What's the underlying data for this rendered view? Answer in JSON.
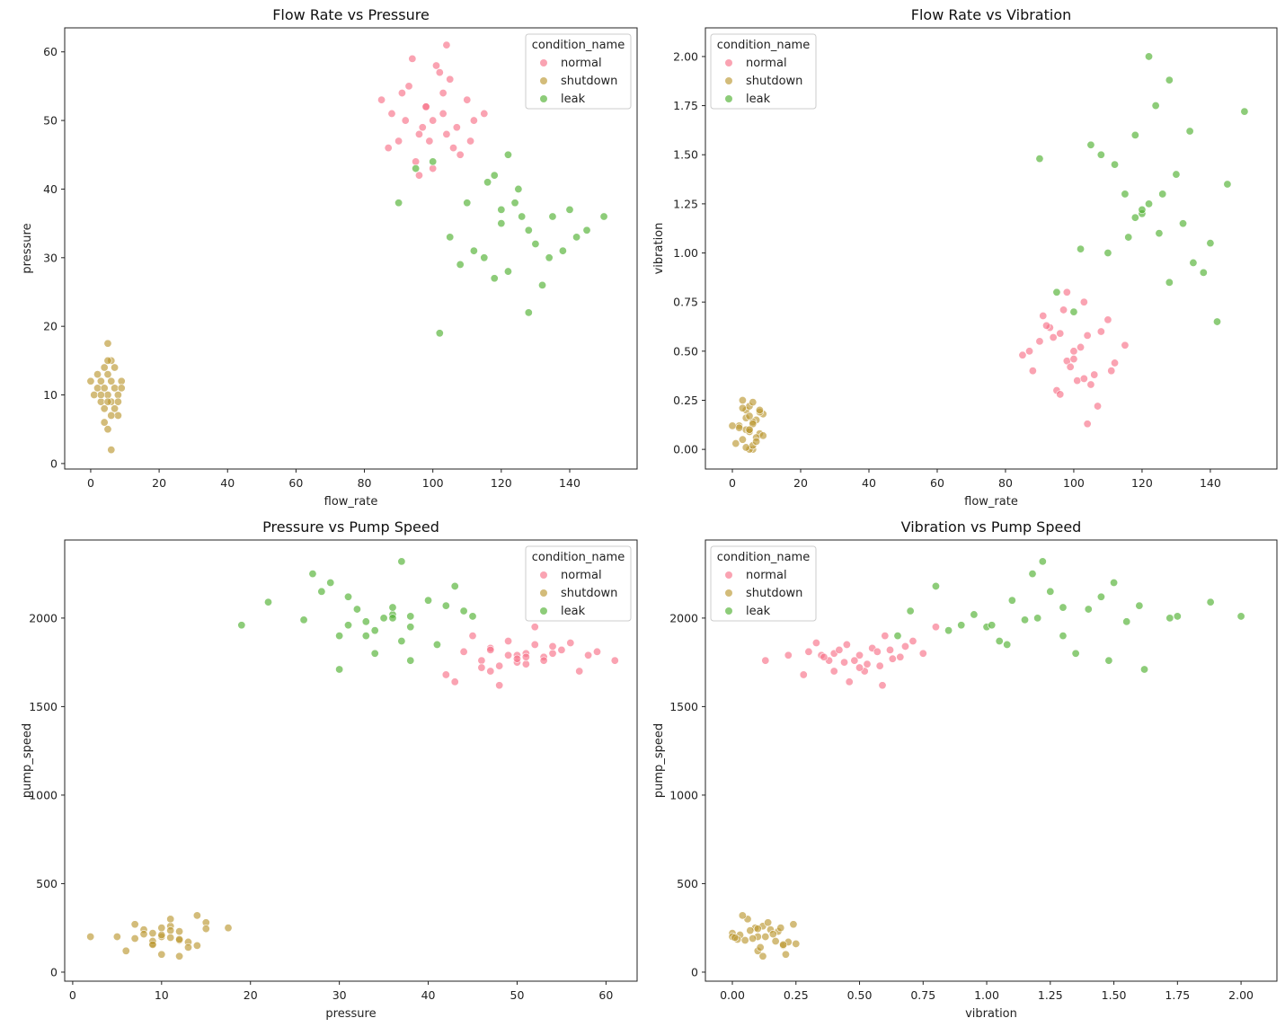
{
  "chart_data": {
    "type": "scatter",
    "colors": {
      "normal": "#f77189",
      "shutdown": "#bb9832",
      "leak": "#50b131"
    },
    "legend_title": "condition_name",
    "variables": [
      "flow_rate",
      "pressure",
      "vibration",
      "pump_speed"
    ],
    "series": [
      {
        "name": "normal",
        "points": [
          [
            100,
            50,
            0.5,
            1790
          ],
          [
            93,
            55,
            0.62,
            1820
          ],
          [
            106,
            46,
            0.38,
            1760
          ],
          [
            98,
            52,
            0.45,
            1850
          ],
          [
            104,
            48,
            0.58,
            1730
          ],
          [
            88,
            51,
            0.4,
            1800
          ],
          [
            110,
            53,
            0.66,
            1780
          ],
          [
            95,
            44,
            0.3,
            1810
          ],
          [
            102,
            57,
            0.52,
            1700
          ],
          [
            97,
            49,
            0.71,
            1870
          ],
          [
            112,
            50,
            0.44,
            1750
          ],
          [
            90,
            47,
            0.55,
            1830
          ],
          [
            101,
            58,
            0.35,
            1790
          ],
          [
            85,
            53,
            0.48,
            1760
          ],
          [
            108,
            45,
            0.6,
            1900
          ],
          [
            96,
            42,
            0.28,
            1680
          ],
          [
            103,
            54,
            0.75,
            1800
          ],
          [
            99,
            47,
            0.42,
            1820
          ],
          [
            115,
            51,
            0.53,
            1740
          ],
          [
            92,
            50,
            0.63,
            1770
          ],
          [
            105,
            56,
            0.33,
            1860
          ],
          [
            87,
            46,
            0.5,
            1720
          ],
          [
            100,
            43,
            0.46,
            1640
          ],
          [
            94,
            59,
            0.57,
            1810
          ],
          [
            107,
            49,
            0.22,
            1790
          ],
          [
            98,
            52,
            0.8,
            1950
          ],
          [
            111,
            47,
            0.4,
            1700
          ],
          [
            91,
            54,
            0.68,
            1840
          ],
          [
            103,
            51,
            0.36,
            1780
          ],
          [
            96,
            48,
            0.59,
            1620
          ],
          [
            104,
            61,
            0.13,
            1760
          ]
        ]
      },
      {
        "name": "shutdown",
        "points": [
          [
            5,
            10,
            0.1,
            200
          ],
          [
            3,
            12,
            0.05,
            180
          ],
          [
            7,
            8,
            0.15,
            240
          ],
          [
            4,
            14,
            0.2,
            150
          ],
          [
            6,
            9,
            0.0,
            220
          ],
          [
            2,
            11,
            0.12,
            260
          ],
          [
            8,
            7,
            0.08,
            190
          ],
          [
            5,
            13,
            0.22,
            170
          ],
          [
            1,
            10,
            0.03,
            210
          ],
          [
            9,
            12,
            0.18,
            230
          ],
          [
            4,
            6,
            0.1,
            120
          ],
          [
            6,
            15,
            0.14,
            280
          ],
          [
            3,
            9,
            0.25,
            160
          ],
          [
            7,
            11,
            0.06,
            300
          ],
          [
            5,
            5,
            0.0,
            200
          ],
          [
            2,
            13,
            0.11,
            140
          ],
          [
            8,
            10,
            0.19,
            250
          ],
          [
            6,
            12,
            0.02,
            185
          ],
          [
            4,
            8,
            0.16,
            215
          ],
          [
            5,
            17.5,
            0.09,
            250
          ],
          [
            6,
            2,
            0.13,
            200
          ],
          [
            3,
            10,
            0.21,
            100
          ],
          [
            7,
            14,
            0.04,
            320
          ],
          [
            5,
            9,
            0.17,
            175
          ],
          [
            9,
            11,
            0.07,
            235
          ],
          [
            0,
            12,
            0.12,
            90
          ],
          [
            6,
            7,
            0.24,
            270
          ],
          [
            4,
            11,
            0.01,
            195
          ],
          [
            5,
            15,
            0.1,
            245
          ],
          [
            8,
            9,
            0.2,
            155
          ]
        ]
      },
      {
        "name": "leak",
        "points": [
          [
            120,
            35,
            1.2,
            2000
          ],
          [
            110,
            38,
            1.0,
            1950
          ],
          [
            130,
            32,
            1.4,
            2050
          ],
          [
            125,
            40,
            1.1,
            2100
          ],
          [
            115,
            30,
            1.3,
            1900
          ],
          [
            135,
            36,
            0.95,
            2020
          ],
          [
            105,
            33,
            1.55,
            1980
          ],
          [
            122,
            28,
            1.25,
            2150
          ],
          [
            140,
            37,
            1.05,
            1870
          ],
          [
            118,
            42,
            1.6,
            2070
          ],
          [
            128,
            34,
            0.85,
            1930
          ],
          [
            112,
            31,
            1.45,
            2120
          ],
          [
            132,
            26,
            1.15,
            1990
          ],
          [
            100,
            44,
            0.7,
            2040
          ],
          [
            145,
            34,
            1.35,
            1800
          ],
          [
            124,
            38,
            1.75,
            2010
          ],
          [
            108,
            29,
            1.5,
            2200
          ],
          [
            138,
            31,
            0.9,
            1960
          ],
          [
            126,
            36,
            1.3,
            2060
          ],
          [
            116,
            41,
            1.08,
            1850
          ],
          [
            150,
            36,
            1.72,
            2000
          ],
          [
            95,
            43,
            0.8,
            2180
          ],
          [
            102,
            19,
            1.02,
            1960
          ],
          [
            128,
            22,
            1.88,
            2090
          ],
          [
            122,
            45,
            2.0,
            2010
          ],
          [
            90,
            38,
            1.48,
            1760
          ],
          [
            142,
            33,
            0.65,
            1900
          ],
          [
            120,
            37,
            1.22,
            2320
          ],
          [
            134,
            30,
            1.62,
            1710
          ],
          [
            118,
            27,
            1.18,
            2250
          ]
        ]
      }
    ],
    "subplots": [
      {
        "title": "Flow Rate vs Pressure",
        "x": "flow_rate",
        "y": "pressure",
        "xlabel": "flow_rate",
        "ylabel": "pressure",
        "xlim": [
          -7.6,
          159.7
        ],
        "ylim": [
          -0.8,
          63.5
        ],
        "xticks": [
          0,
          20,
          40,
          60,
          80,
          100,
          120,
          140
        ],
        "yticks": [
          0,
          10,
          20,
          30,
          40,
          50,
          60
        ],
        "tick_decimals": [
          0,
          0
        ],
        "legend": "upper right"
      },
      {
        "title": "Flow Rate vs Vibration",
        "x": "flow_rate",
        "y": "vibration",
        "xlabel": "flow_rate",
        "ylabel": "vibration",
        "xlim": [
          -7.9,
          159.5
        ],
        "ylim": [
          -0.1,
          2.146
        ],
        "xticks": [
          0,
          20,
          40,
          60,
          80,
          100,
          120,
          140
        ],
        "yticks": [
          0,
          0.25,
          0.5,
          0.75,
          1,
          1.25,
          1.5,
          1.75,
          2
        ],
        "tick_decimals": [
          0,
          2
        ],
        "legend": "upper left"
      },
      {
        "title": "Pressure vs Pump Speed",
        "x": "pressure",
        "y": "pump_speed",
        "xlabel": "pressure",
        "ylabel": "pump_speed",
        "xlim": [
          -0.9,
          63.5
        ],
        "ylim": [
          -51,
          2441
        ],
        "xticks": [
          0,
          10,
          20,
          30,
          40,
          50,
          60
        ],
        "yticks": [
          0,
          500,
          1000,
          1500,
          2000
        ],
        "tick_decimals": [
          0,
          0
        ],
        "legend": "upper right"
      },
      {
        "title": "Vibration vs Pump Speed",
        "x": "vibration",
        "y": "pump_speed",
        "xlabel": "vibration",
        "ylabel": "pump_speed",
        "xlim": [
          -0.106,
          2.141
        ],
        "ylim": [
          -51,
          2441
        ],
        "xticks": [
          0,
          0.25,
          0.5,
          0.75,
          1,
          1.25,
          1.5,
          1.75,
          2
        ],
        "yticks": [
          0,
          500,
          1000,
          1500,
          2000
        ],
        "tick_decimals": [
          2,
          0
        ],
        "legend": "upper left"
      }
    ]
  }
}
